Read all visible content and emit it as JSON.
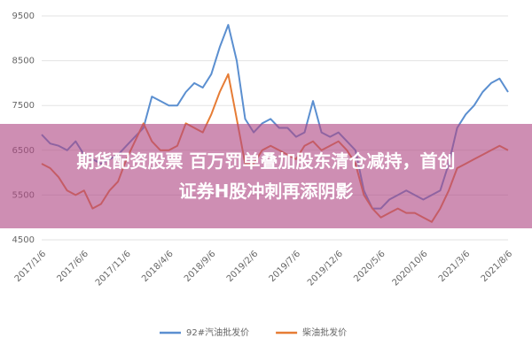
{
  "chart_data": {
    "type": "line",
    "categories": [
      "2017/1/6",
      null,
      null,
      null,
      null,
      "2017/6/6",
      null,
      null,
      null,
      null,
      "2017/11/6",
      null,
      null,
      null,
      null,
      "2018/4/6",
      null,
      null,
      null,
      null,
      "2018/9/6",
      null,
      null,
      null,
      null,
      "2019/2/6",
      null,
      null,
      null,
      null,
      "2019/7/6",
      null,
      null,
      null,
      null,
      "2019/12/6",
      null,
      null,
      null,
      null,
      "2020/5/6",
      null,
      null,
      null,
      null,
      "2020/10/6",
      null,
      null,
      null,
      null,
      "2021/3/6",
      null,
      null,
      null,
      null,
      "2021/8/6"
    ],
    "series": [
      {
        "name": "92#汽油批发价",
        "color": "#5b8fd0",
        "values": [
          6850,
          6650,
          6600,
          6500,
          6700,
          6400,
          6300,
          6200,
          6300,
          6400,
          6600,
          6800,
          7000,
          7700,
          7600,
          7500,
          7500,
          7800,
          8000,
          7900,
          8200,
          8800,
          9300,
          8500,
          7200,
          6900,
          7100,
          7200,
          7000,
          7000,
          6800,
          6900,
          7600,
          6900,
          6800,
          6900,
          6700,
          6500,
          5600,
          5200,
          5200,
          5400,
          5500,
          5600,
          5500,
          5400,
          5500,
          5600,
          6200,
          7000,
          7300,
          7500,
          7800,
          8000,
          8100,
          7800
        ]
      },
      {
        "name": "柴油批发价",
        "color": "#e67c35",
        "values": [
          6200,
          6100,
          5900,
          5600,
          5500,
          5600,
          5200,
          5300,
          5600,
          5800,
          6300,
          6700,
          7100,
          6700,
          6500,
          6500,
          6600,
          7100,
          7000,
          6900,
          7300,
          7800,
          8200,
          7200,
          6200,
          6200,
          6500,
          6600,
          6500,
          6400,
          6300,
          6600,
          6700,
          6500,
          6600,
          6700,
          6500,
          6200,
          5500,
          5200,
          5000,
          5100,
          5200,
          5100,
          5100,
          5000,
          4900,
          5200,
          5600,
          6100,
          6200,
          6300,
          6400,
          6500,
          6600,
          6500
        ]
      }
    ],
    "ylim": [
      4500,
      9500
    ],
    "yticks": [
      4500,
      5500,
      6500,
      7500,
      8500,
      9500
    ],
    "grid": true,
    "legend": "bottom"
  },
  "banner": {
    "lines": [
      "期货配资股票 百万罚单叠加股东清仓减持，首创",
      "证券H股冲刺再添阴影"
    ]
  }
}
